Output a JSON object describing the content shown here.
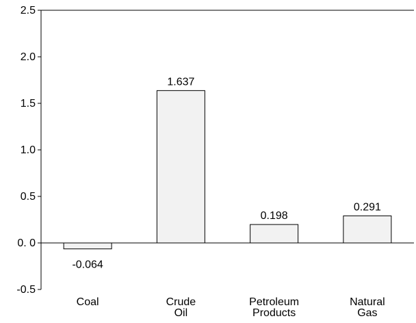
{
  "chart_data": {
    "type": "bar",
    "categories": [
      [
        "Coal"
      ],
      [
        "Crude",
        "Oil"
      ],
      [
        "Petroleum",
        "Products"
      ],
      [
        "Natural",
        "Gas"
      ]
    ],
    "values": [
      -0.064,
      1.637,
      0.198,
      0.291
    ],
    "value_labels": [
      "-0.064",
      "1.637",
      "0.198",
      "0.291"
    ],
    "ylim": [
      -0.5,
      2.5
    ],
    "yticks": [
      -0.5,
      0.0,
      0.5,
      1.0,
      1.5,
      2.0,
      2.5
    ],
    "ytick_labels": [
      "-0.5",
      "0. 0",
      "0.5",
      "1.0",
      "1.5",
      "2.0",
      "2.5"
    ],
    "title": "",
    "xlabel": "",
    "ylabel": "",
    "grid": false,
    "legend": "none",
    "colors": {
      "bar_fill": "#f2f2f2",
      "bar_stroke": "#000000",
      "axis": "#000000",
      "text": "#000000"
    }
  }
}
